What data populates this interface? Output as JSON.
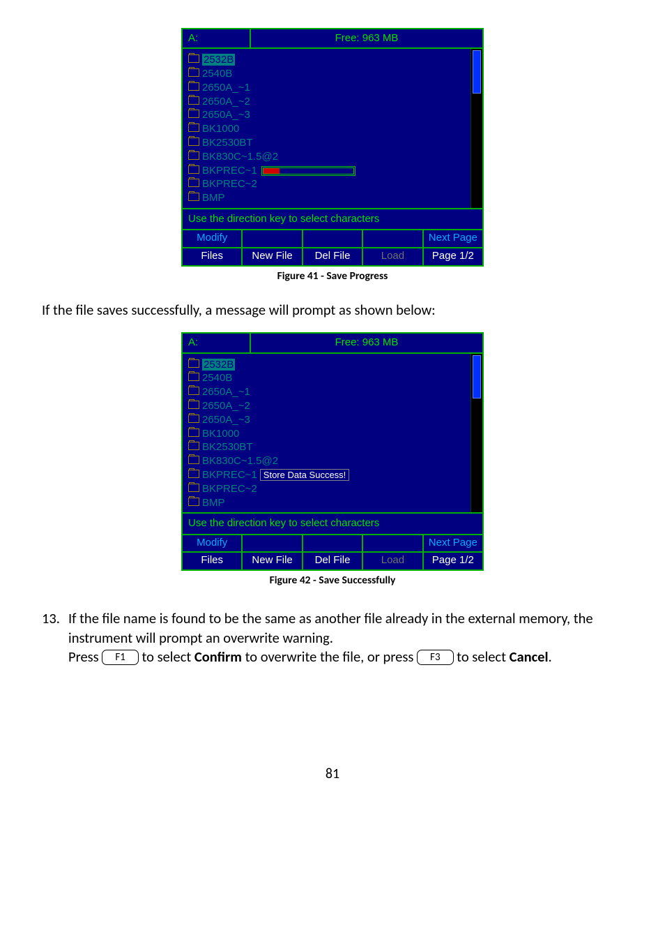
{
  "screen1": {
    "drive": "A:",
    "free": "Free: 963 MB",
    "files": [
      "2532B",
      "2540B",
      "2650A_~1",
      "2650A_~2",
      "2650A_~3",
      "BK1000",
      "BK2530BT",
      "BK830C~1.5@2",
      "BKPREC~1",
      "BKPREC~2",
      "BMP"
    ],
    "selectedIndex": 0,
    "progressRow": 8,
    "progressPercent": 18,
    "hint": "Use the direction key to select characters",
    "buttons_top": [
      "Modify",
      "",
      "",
      "",
      "Next Page"
    ],
    "buttons_bot": [
      "Files",
      "New File",
      "Del File",
      "Load",
      "Page 1/2"
    ],
    "disabledBottom": [
      3
    ]
  },
  "screen2": {
    "drive": "A:",
    "free": "Free: 963 MB",
    "files": [
      "2532B",
      "2540B",
      "2650A_~1",
      "2650A_~2",
      "2650A_~3",
      "BK1000",
      "BK2530BT",
      "BK830C~1.5@2",
      "BKPREC~1",
      "BKPREC~2",
      "BMP"
    ],
    "selectedIndex": 0,
    "statusRow": 8,
    "statusText": "Store Data Success!",
    "hint": "Use the direction key to select characters",
    "buttons_top": [
      "Modify",
      "",
      "",
      "",
      "Next Page"
    ],
    "buttons_bot": [
      "Files",
      "New File",
      "Del File",
      "Load",
      "Page 1/2"
    ],
    "disabledBottom": [
      3
    ]
  },
  "caption1": "Figure 41 - Save Progress",
  "caption2": "Figure 42 - Save Successfully",
  "text_between": "If the file saves successfully, a message will prompt as shown below:",
  "item13": {
    "num": "13.",
    "line1a": "If the file name is found to be the same as another file already in the external memory, the instrument will prompt an overwrite warning.",
    "press": "Press ",
    "key1": "F1",
    "mid": " to select ",
    "confirm": "Confirm",
    "mid2": " to overwrite the file, or press ",
    "key2": "F3",
    "mid3": " to select ",
    "cancel": "Cancel",
    "end": "."
  },
  "pagenum": "81"
}
